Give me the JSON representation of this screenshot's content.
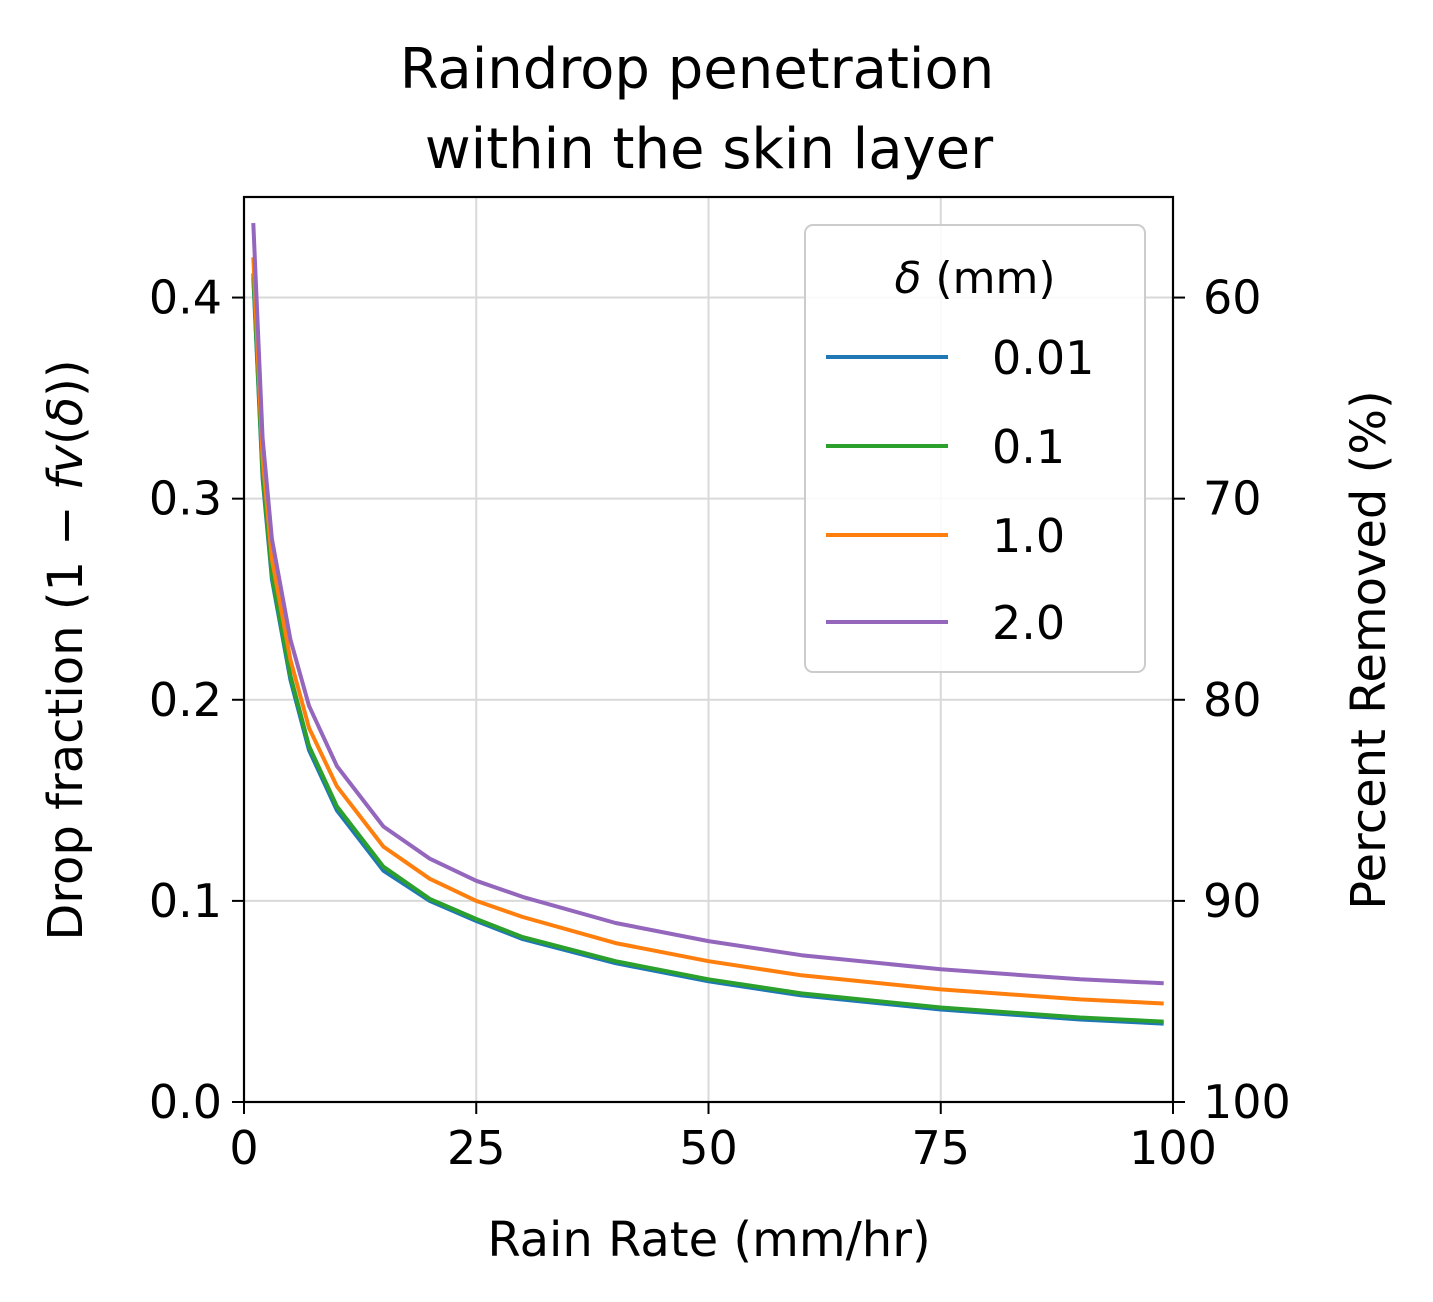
{
  "chart_data": {
    "type": "line",
    "title_lines": [
      "Raindrop penetration",
      "within the skin layer"
    ],
    "xlabel": "Rain Rate (mm/hr)",
    "ylabel_left": "Drop fraction (1 − fv(δ))",
    "ylabel_left_parts": {
      "pre": "Drop fraction (1 − ",
      "italic": "fv",
      "mid": "(",
      "delta": "δ",
      "post": "))"
    },
    "ylabel_right": "Percent Removed (%)",
    "xlim": [
      0,
      100
    ],
    "ylim": [
      0,
      0.45
    ],
    "x_ticks": [
      0,
      25,
      50,
      75,
      100
    ],
    "x_tick_labels": [
      "0",
      "25",
      "50",
      "75",
      "100"
    ],
    "y_ticks": [
      0.0,
      0.1,
      0.2,
      0.3,
      0.4
    ],
    "y_tick_labels": [
      "0.0",
      "0.1",
      "0.2",
      "0.3",
      "0.4"
    ],
    "y2_ticks": [
      60,
      70,
      80,
      90,
      100
    ],
    "y2_tick_labels": [
      "60",
      "70",
      "80",
      "90",
      "100"
    ],
    "y2_relation": "percent_removed = 100 * (1 - drop_fraction)",
    "grid": true,
    "legend": {
      "placement": "top-right",
      "title_symbol": "δ",
      "title_unit": " (mm)",
      "title": "δ (mm)"
    },
    "series": [
      {
        "name": "0.01",
        "color": "#1f77b4",
        "x": [
          1,
          2,
          3,
          5,
          7,
          10,
          15,
          20,
          25,
          30,
          40,
          50,
          60,
          75,
          90,
          99
        ],
        "y": [
          0.41,
          0.31,
          0.26,
          0.21,
          0.175,
          0.145,
          0.115,
          0.1,
          0.09,
          0.081,
          0.069,
          0.06,
          0.053,
          0.046,
          0.041,
          0.039
        ]
      },
      {
        "name": "0.1",
        "color": "#2ca02c",
        "x": [
          1,
          2,
          3,
          5,
          7,
          10,
          15,
          20,
          25,
          30,
          40,
          50,
          60,
          75,
          90,
          99
        ],
        "y": [
          0.412,
          0.312,
          0.262,
          0.212,
          0.177,
          0.147,
          0.117,
          0.101,
          0.091,
          0.082,
          0.07,
          0.061,
          0.054,
          0.047,
          0.042,
          0.04
        ]
      },
      {
        "name": "1.0",
        "color": "#ff7f0e",
        "x": [
          1,
          2,
          3,
          5,
          7,
          10,
          15,
          20,
          25,
          30,
          40,
          50,
          60,
          75,
          90,
          99
        ],
        "y": [
          0.42,
          0.32,
          0.27,
          0.22,
          0.186,
          0.157,
          0.127,
          0.111,
          0.1,
          0.092,
          0.079,
          0.07,
          0.063,
          0.056,
          0.051,
          0.049
        ]
      },
      {
        "name": "2.0",
        "color": "#9467bd",
        "x": [
          1,
          2,
          3,
          5,
          7,
          10,
          15,
          20,
          25,
          30,
          40,
          50,
          60,
          75,
          90,
          99
        ],
        "y": [
          0.437,
          0.33,
          0.28,
          0.23,
          0.197,
          0.167,
          0.137,
          0.121,
          0.11,
          0.102,
          0.089,
          0.08,
          0.073,
          0.066,
          0.061,
          0.059
        ]
      }
    ]
  }
}
